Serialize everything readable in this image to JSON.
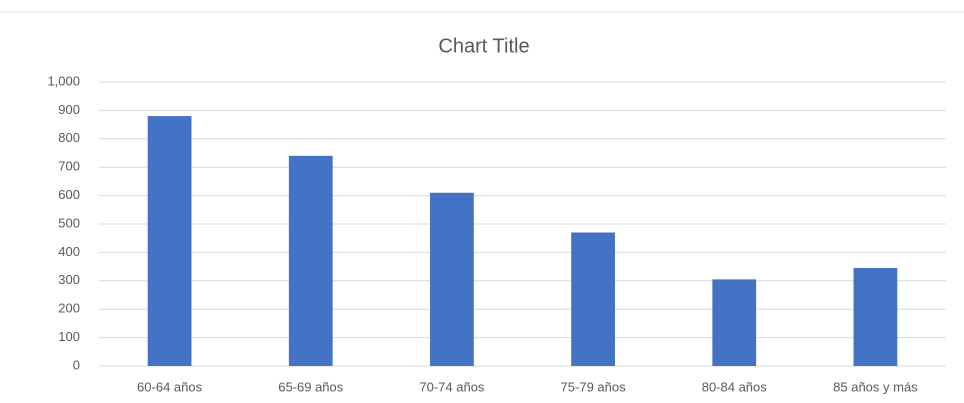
{
  "chart_data": {
    "type": "bar",
    "title": "Chart Title",
    "categories": [
      "60-64 años",
      "65-69 años",
      "70-74 años",
      "75-79 años",
      "80-84 años",
      "85 años y más"
    ],
    "values": [
      880,
      740,
      610,
      470,
      305,
      345
    ],
    "color": "#4472c4",
    "ylim": [
      0,
      1000
    ],
    "yticks": [
      0,
      100,
      200,
      300,
      400,
      500,
      600,
      700,
      800,
      900,
      {
        "value": 1000,
        "label": "1,000"
      }
    ],
    "grid": true
  }
}
